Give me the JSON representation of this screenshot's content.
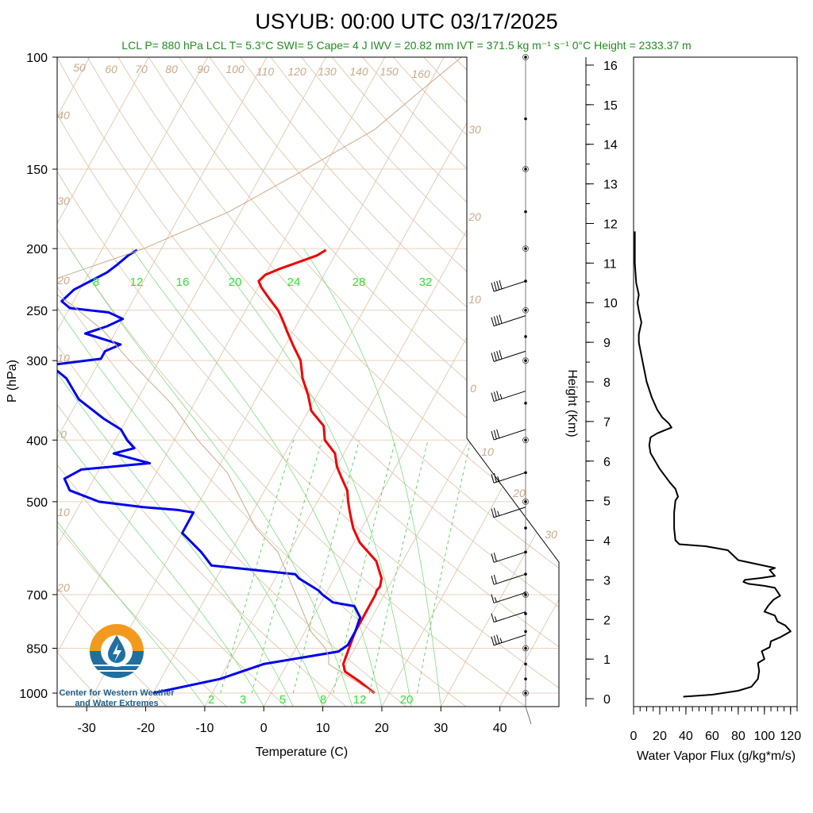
{
  "header": {
    "title": "USYUB: 00:00 UTC 03/17/2025",
    "subtitle": "LCL P= 880 hPa  LCL T= 5.3°C  SWI= 5  Cape= 4 J  IWV = 20.82 mm  IVT = 371.5 kg m⁻¹ s⁻¹  0°C Height = 2333.37 m"
  },
  "logo": {
    "line1": "Center for Western Weather",
    "line2": "and Water Extremes"
  },
  "chart_data": [
    {
      "type": "line",
      "subtype": "skew-t",
      "xlabel": "Temperature (C)",
      "ylabel": "P (hPa)",
      "xlim": [
        -35,
        50
      ],
      "ylim": [
        1050,
        100
      ],
      "y_scale": "log",
      "x_ticks": [
        "-30",
        "-20",
        "-10",
        "0",
        "10",
        "20",
        "30",
        "40"
      ],
      "y_ticks": [
        "100",
        "150",
        "200",
        "250",
        "300",
        "400",
        "500",
        "700",
        "850",
        "1000"
      ],
      "dry_adiabat_labels": [
        "50",
        "60",
        "70",
        "80",
        "90",
        "100",
        "110",
        "120",
        "130",
        "140",
        "150",
        "160"
      ],
      "moist_adiabat_labels": [
        "30",
        "20",
        "10",
        "0",
        "10",
        "20",
        "30"
      ],
      "isotherm_labels": [
        "40",
        "30",
        "20",
        "10",
        "0",
        "10",
        "20"
      ],
      "mixing_ratio_labels_upper": [
        "8",
        "12",
        "16",
        "20",
        "24",
        "28",
        "32"
      ],
      "mixing_ratio_labels_lower": [
        "2",
        "3",
        "5",
        "8",
        "12",
        "20"
      ],
      "colors": {
        "temperature": "#ee0000",
        "dewpoint": "#0000ee",
        "parcel": "#c8a98a",
        "mixing_ratio": "#33cc33",
        "adiabat": "#d9bfa5"
      },
      "series": [
        {
          "key": "temperature",
          "points": [
            [
              17.5,
              1000
            ],
            [
              14,
              960
            ],
            [
              10.5,
              925
            ],
            [
              9.5,
              900
            ],
            [
              9,
              850
            ],
            [
              8.5,
              800
            ],
            [
              8.5,
              760
            ],
            [
              8.5,
              720
            ],
            [
              8.5,
              700
            ],
            [
              8.3,
              690
            ],
            [
              8.5,
              680
            ],
            [
              8,
              660
            ],
            [
              5.5,
              620
            ],
            [
              1,
              580
            ],
            [
              -1.5,
              550
            ],
            [
              -3.5,
              520
            ],
            [
              -4.8,
              500
            ],
            [
              -6,
              480
            ],
            [
              -8,
              460
            ],
            [
              -10,
              440
            ],
            [
              -11.5,
              420
            ],
            [
              -14.5,
              400
            ],
            [
              -16,
              380
            ],
            [
              -19.5,
              360
            ],
            [
              -21.5,
              340
            ],
            [
              -24,
              320
            ],
            [
              -26,
              300
            ],
            [
              -28.5,
              285
            ],
            [
              -31,
              270
            ],
            [
              -33,
              258
            ],
            [
              -34.5,
              250
            ],
            [
              -37,
              240
            ],
            [
              -39.5,
              230
            ],
            [
              -40.5,
              225
            ],
            [
              -40,
              220
            ],
            [
              -38,
              215
            ],
            [
              -35.5,
              210
            ],
            [
              -33,
              205
            ],
            [
              -32,
              201
            ]
          ]
        },
        {
          "key": "dewpoint",
          "points": [
            [
              -20,
              1000
            ],
            [
              -10,
              950
            ],
            [
              -4,
              900
            ],
            [
              7.5,
              860
            ],
            [
              8.5,
              840
            ],
            [
              8.5,
              800
            ],
            [
              8,
              760
            ],
            [
              6,
              730
            ],
            [
              2,
              720
            ],
            [
              -0.5,
              700
            ],
            [
              -1.5,
              690
            ],
            [
              -6,
              660
            ],
            [
              -7,
              650
            ],
            [
              -22,
              630
            ],
            [
              -25,
              600
            ],
            [
              -30,
              560
            ],
            [
              -30,
              540
            ],
            [
              -30,
              520
            ],
            [
              -33,
              515
            ],
            [
              -39,
              510
            ],
            [
              -47,
              500
            ],
            [
              -53,
              480
            ],
            [
              -55,
              460
            ],
            [
              -53,
              445
            ],
            [
              -42,
              435
            ],
            [
              -49,
              420
            ],
            [
              -46,
              412
            ],
            [
              -48,
              400
            ],
            [
              -50,
              385
            ],
            [
              -54,
              370
            ],
            [
              -60,
              345
            ],
            [
              -64,
              320
            ],
            [
              -68,
              305
            ],
            [
              -60,
              298
            ],
            [
              -60,
              290
            ],
            [
              -58,
              283
            ],
            [
              -65,
              272
            ],
            [
              -62,
              265
            ],
            [
              -60,
              258
            ],
            [
              -63,
              252
            ],
            [
              -70,
              248
            ],
            [
              -72,
              242
            ],
            [
              -71,
              232
            ],
            [
              -69,
              225
            ],
            [
              -67,
              218
            ],
            [
              -66,
              212
            ],
            [
              -65,
              205
            ],
            [
              -64,
              201
            ]
          ]
        },
        {
          "key": "parcel",
          "points": [
            [
              17.5,
              1000
            ],
            [
              7,
              900
            ],
            [
              6.5,
              880
            ],
            [
              5,
              850
            ],
            [
              1,
              800
            ],
            [
              -5,
              700
            ],
            [
              -12,
              600
            ],
            [
              -18,
              550
            ],
            [
              -28,
              450
            ],
            [
              -36,
              400
            ],
            [
              -44,
              350
            ],
            [
              -55,
              300
            ],
            [
              -62,
              270
            ],
            [
              -70,
              245
            ],
            [
              -76,
              230
            ],
            [
              -76,
              225
            ],
            [
              -63,
              200
            ],
            [
              -52,
              175
            ],
            [
              -43,
              150
            ],
            [
              -35,
              130
            ],
            [
              -30,
              110
            ],
            [
              -27,
              100
            ]
          ]
        }
      ],
      "wind_barbs": [
        {
          "p": 225,
          "spd": 40,
          "dir": 250
        },
        {
          "p": 255,
          "spd": 40,
          "dir": 250
        },
        {
          "p": 290,
          "spd": 40,
          "dir": 245
        },
        {
          "p": 335,
          "spd": 35,
          "dir": 250
        },
        {
          "p": 385,
          "spd": 30,
          "dir": 245
        },
        {
          "p": 450,
          "spd": 25,
          "dir": 240
        },
        {
          "p": 510,
          "spd": 25,
          "dir": 245
        },
        {
          "p": 600,
          "spd": 20,
          "dir": 240
        },
        {
          "p": 650,
          "spd": 20,
          "dir": 235
        },
        {
          "p": 695,
          "spd": 15,
          "dir": 225
        },
        {
          "p": 745,
          "spd": 15,
          "dir": 230
        },
        {
          "p": 810,
          "spd": 35,
          "dir": 300
        }
      ]
    },
    {
      "type": "line",
      "xlabel": "Water Vapor Flux (g/kg*m/s)",
      "ylabel": "Height (Km)",
      "xlim": [
        0,
        125
      ],
      "ylim": [
        -0.2,
        16.2
      ],
      "x_ticks": [
        "0",
        "20",
        "40",
        "60",
        "80",
        "100",
        "120"
      ],
      "y_ticks": [
        "0",
        "1",
        "2",
        "3",
        "4",
        "5",
        "6",
        "7",
        "8",
        "9",
        "10",
        "11",
        "12",
        "13",
        "14",
        "15",
        "16"
      ],
      "series": [
        {
          "key": "flux",
          "points": [
            [
              38,
              0.05
            ],
            [
              60,
              0.1
            ],
            [
              80,
              0.2
            ],
            [
              90,
              0.3
            ],
            [
              95,
              0.5
            ],
            [
              96,
              0.7
            ],
            [
              95,
              0.9
            ],
            [
              100,
              1.0
            ],
            [
              98,
              1.2
            ],
            [
              104,
              1.3
            ],
            [
              105,
              1.45
            ],
            [
              112,
              1.55
            ],
            [
              120,
              1.7
            ],
            [
              116,
              1.85
            ],
            [
              110,
              1.95
            ],
            [
              108,
              2.1
            ],
            [
              100,
              2.2
            ],
            [
              103,
              2.35
            ],
            [
              107,
              2.5
            ],
            [
              112,
              2.6
            ],
            [
              108,
              2.8
            ],
            [
              100,
              2.85
            ],
            [
              88,
              2.9
            ],
            [
              84,
              2.95
            ],
            [
              85,
              3.0
            ],
            [
              98,
              3.05
            ],
            [
              108,
              3.1
            ],
            [
              104,
              3.25
            ],
            [
              108,
              3.3
            ],
            [
              80,
              3.5
            ],
            [
              72,
              3.75
            ],
            [
              55,
              3.85
            ],
            [
              35,
              3.9
            ],
            [
              32,
              4.0
            ],
            [
              31,
              4.3
            ],
            [
              31,
              4.7
            ],
            [
              32,
              5.0
            ],
            [
              34,
              5.1
            ],
            [
              32,
              5.3
            ],
            [
              28,
              5.45
            ],
            [
              20,
              5.8
            ],
            [
              13,
              6.2
            ],
            [
              12,
              6.4
            ],
            [
              13,
              6.6
            ],
            [
              18,
              6.7
            ],
            [
              29,
              6.85
            ],
            [
              27,
              6.95
            ],
            [
              22,
              7.1
            ],
            [
              18,
              7.3
            ],
            [
              14,
              7.6
            ],
            [
              10,
              8.0
            ],
            [
              7,
              8.5
            ],
            [
              4,
              9.0
            ],
            [
              4,
              9.2
            ],
            [
              6,
              9.5
            ],
            [
              4,
              9.8
            ],
            [
              3,
              10.0
            ],
            [
              4,
              10.2
            ],
            [
              2,
              10.5
            ],
            [
              1,
              11.0
            ],
            [
              1,
              11.5
            ],
            [
              1,
              11.8
            ]
          ]
        }
      ]
    }
  ]
}
